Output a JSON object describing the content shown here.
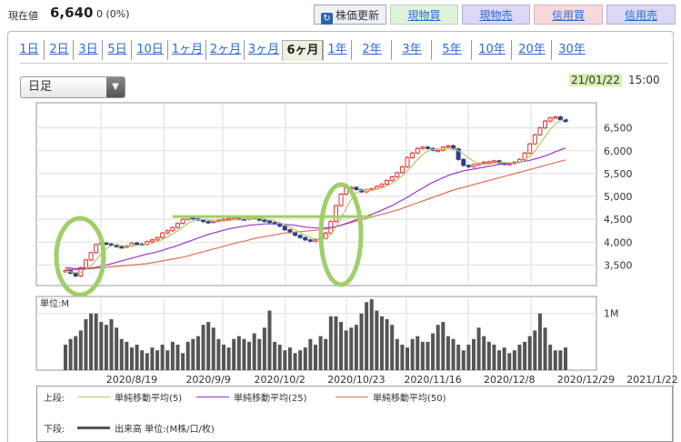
{
  "header": {
    "price_label": "現在値",
    "price_value": "6,640",
    "price_change": "0 (0%)",
    "update_button": "株価更新",
    "update_icon": "refresh-icon",
    "buy_spot": "現物買",
    "sell_spot": "現物売",
    "buy_margin": "信用買",
    "sell_margin": "信用売"
  },
  "tabs": [
    "1日",
    "2日",
    "3日",
    "5日",
    "10日",
    "1ヶ月",
    "2ヶ月",
    "3ヶ月",
    "6ヶ月",
    "1年",
    "2年",
    "3年",
    "5年",
    "10年",
    "20年",
    "30年"
  ],
  "active_tab": "6ヶ月",
  "select": {
    "value": "日足",
    "icon": "triangle-down-icon"
  },
  "current_date": "21/01/22",
  "current_time": "15:00",
  "volume_unit_label": "単位:M",
  "legend": {
    "upper_label": "上段:",
    "lower_label": "下段:",
    "ma5": "単純移動平均(5)",
    "ma25": "単純移動平均(25)",
    "ma50": "単純移動平均(50)",
    "volume": "出来高 単位:(M株/口/枚)"
  },
  "colors": {
    "up": "#e03030",
    "down": "#2a3f8f",
    "ma5": "#b8c860",
    "ma25": "#9933cc",
    "ma50": "#e07050",
    "volume": "#555555",
    "highlight": "#9fcf6a"
  },
  "chart_data": [
    {
      "type": "candlestick",
      "y_ticks": [
        "6,500",
        "6,000",
        "5,500",
        "5,000",
        "4,500",
        "4,000",
        "3,500"
      ],
      "y_tick_values": [
        6500,
        6000,
        5500,
        5000,
        4500,
        4000,
        3500
      ],
      "ylim": [
        3050,
        7050
      ],
      "x_tick_labels": [
        "2020/8/19",
        "2020/9/9",
        "2020/10/2",
        "2020/10/23",
        "2020/11/16",
        "2020/12/8",
        "2020/12/29",
        "2021/1/22"
      ],
      "x_tick_index": [
        13,
        28,
        42,
        57,
        72,
        87,
        102,
        115
      ],
      "close": [
        3380,
        3320,
        3260,
        3440,
        3610,
        3770,
        3950,
        3980,
        3960,
        3940,
        3900,
        3890,
        3920,
        3980,
        3960,
        3950,
        4010,
        4050,
        4100,
        4200,
        4250,
        4320,
        4410,
        4500,
        4550,
        4510,
        4480,
        4450,
        4430,
        4460,
        4480,
        4500,
        4520,
        4520,
        4510,
        4500,
        4540,
        4520,
        4480,
        4460,
        4430,
        4400,
        4350,
        4270,
        4210,
        4150,
        4100,
        4050,
        4020,
        4050,
        4080,
        4200,
        4450,
        4800,
        5050,
        5200,
        5200,
        5150,
        5100,
        5150,
        5170,
        5220,
        5270,
        5350,
        5430,
        5520,
        5650,
        5850,
        5950,
        6050,
        6080,
        6050,
        6010,
        6010,
        6080,
        6110,
        6040,
        5810,
        5680,
        5650,
        5700,
        5720,
        5750,
        5760,
        5780,
        5730,
        5700,
        5720,
        5750,
        5810,
        5950,
        6150,
        6350,
        6500,
        6650,
        6720,
        6740,
        6680,
        6640
      ],
      "open": [
        3350,
        3380,
        3320,
        3260,
        3440,
        3610,
        3770,
        3950,
        3980,
        3960,
        3940,
        3900,
        3890,
        3920,
        3980,
        3960,
        3950,
        4010,
        4050,
        4100,
        4200,
        4250,
        4320,
        4410,
        4500,
        4550,
        4510,
        4480,
        4450,
        4430,
        4460,
        4480,
        4500,
        4520,
        4520,
        4510,
        4500,
        4540,
        4520,
        4480,
        4460,
        4430,
        4400,
        4350,
        4270,
        4210,
        4150,
        4100,
        4050,
        4020,
        4050,
        4080,
        4200,
        4450,
        4800,
        5050,
        5200,
        5200,
        5150,
        5100,
        5150,
        5170,
        5220,
        5270,
        5350,
        5430,
        5520,
        5650,
        5850,
        5950,
        6050,
        6080,
        6050,
        6010,
        6010,
        6080,
        6110,
        6040,
        5810,
        5680,
        5650,
        5700,
        5720,
        5750,
        5760,
        5780,
        5730,
        5700,
        5720,
        5750,
        5810,
        5950,
        6150,
        6350,
        6500,
        6650,
        6720,
        6740,
        6680
      ],
      "ma5": [
        3360,
        3350,
        3330,
        3340,
        3410,
        3480,
        3610,
        3750,
        3850,
        3920,
        3950,
        3930,
        3910,
        3920,
        3930,
        3940,
        3960,
        3980,
        4010,
        4060,
        4120,
        4180,
        4250,
        4330,
        4410,
        4460,
        4490,
        4500,
        4490,
        4470,
        4460,
        4460,
        4470,
        4490,
        4500,
        4510,
        4510,
        4520,
        4520,
        4510,
        4490,
        4460,
        4430,
        4380,
        4330,
        4270,
        4210,
        4150,
        4100,
        4070,
        4060,
        4080,
        4160,
        4320,
        4520,
        4740,
        4930,
        5080,
        5140,
        5160,
        5150,
        5160,
        5190,
        5230,
        5290,
        5360,
        5450,
        5560,
        5680,
        5810,
        5920,
        5990,
        6030,
        6040,
        6050,
        6050,
        6050,
        6000,
        5930,
        5840,
        5770,
        5710,
        5700,
        5710,
        5730,
        5740,
        5740,
        5740,
        5730,
        5740,
        5790,
        5880,
        5990,
        6150,
        6310,
        6470,
        6590,
        6660,
        6690
      ],
      "ma25": [
        3440,
        3430,
        3420,
        3420,
        3420,
        3430,
        3450,
        3470,
        3500,
        3530,
        3560,
        3590,
        3620,
        3650,
        3680,
        3710,
        3740,
        3760,
        3790,
        3820,
        3860,
        3890,
        3930,
        3970,
        4010,
        4050,
        4090,
        4130,
        4170,
        4200,
        4230,
        4260,
        4290,
        4310,
        4330,
        4350,
        4370,
        4380,
        4390,
        4400,
        4400,
        4400,
        4400,
        4390,
        4380,
        4370,
        4350,
        4330,
        4320,
        4310,
        4310,
        4310,
        4320,
        4340,
        4370,
        4410,
        4450,
        4490,
        4530,
        4570,
        4610,
        4650,
        4700,
        4750,
        4800,
        4860,
        4920,
        4980,
        5050,
        5120,
        5180,
        5250,
        5310,
        5360,
        5410,
        5460,
        5500,
        5530,
        5560,
        5580,
        5600,
        5620,
        5640,
        5660,
        5680,
        5700,
        5710,
        5720,
        5730,
        5750,
        5770,
        5790,
        5820,
        5850,
        5890,
        5930,
        5980,
        6020,
        6060
      ],
      "ma50": [
        3400,
        3400,
        3400,
        3410,
        3410,
        3420,
        3430,
        3440,
        3450,
        3460,
        3470,
        3480,
        3490,
        3500,
        3510,
        3520,
        3530,
        3550,
        3570,
        3590,
        3610,
        3630,
        3650,
        3670,
        3700,
        3730,
        3760,
        3790,
        3820,
        3850,
        3880,
        3910,
        3940,
        3970,
        4000,
        4020,
        4050,
        4080,
        4100,
        4120,
        4140,
        4160,
        4180,
        4200,
        4210,
        4220,
        4230,
        4240,
        4250,
        4260,
        4270,
        4290,
        4310,
        4340,
        4370,
        4400,
        4430,
        4460,
        4490,
        4520,
        4550,
        4580,
        4610,
        4640,
        4670,
        4700,
        4740,
        4780,
        4820,
        4860,
        4900,
        4940,
        4980,
        5020,
        5060,
        5100,
        5140,
        5170,
        5200,
        5230,
        5260,
        5290,
        5320,
        5350,
        5380,
        5410,
        5440,
        5470,
        5500,
        5530,
        5560,
        5590,
        5620,
        5650,
        5680,
        5710,
        5740,
        5770,
        5800
      ]
    },
    {
      "type": "bar",
      "name": "出来高",
      "y_tick_label": "1M",
      "values": [
        0.45,
        0.55,
        0.6,
        0.7,
        0.9,
        1.0,
        1.0,
        0.85,
        0.8,
        0.9,
        0.75,
        0.55,
        0.5,
        0.4,
        0.45,
        0.35,
        0.3,
        0.4,
        0.35,
        0.45,
        0.35,
        0.5,
        0.45,
        0.3,
        0.5,
        0.55,
        0.6,
        0.8,
        0.85,
        0.75,
        0.55,
        0.45,
        0.4,
        0.55,
        0.6,
        0.55,
        0.5,
        0.65,
        0.55,
        0.75,
        1.05,
        0.5,
        0.45,
        0.35,
        0.4,
        0.3,
        0.35,
        0.4,
        0.55,
        0.45,
        0.6,
        0.55,
        0.95,
        0.95,
        0.85,
        0.7,
        0.75,
        0.8,
        1.0,
        1.2,
        1.25,
        1.05,
        0.95,
        0.9,
        0.8,
        0.55,
        0.45,
        0.4,
        0.55,
        0.6,
        0.5,
        0.5,
        0.65,
        0.8,
        0.85,
        0.6,
        0.55,
        0.45,
        0.35,
        0.45,
        0.55,
        0.75,
        0.6,
        0.5,
        0.45,
        0.35,
        0.4,
        0.3,
        0.35,
        0.45,
        0.5,
        0.6,
        0.7,
        1.0,
        0.75,
        0.45,
        0.35,
        0.35,
        0.4
      ]
    }
  ]
}
